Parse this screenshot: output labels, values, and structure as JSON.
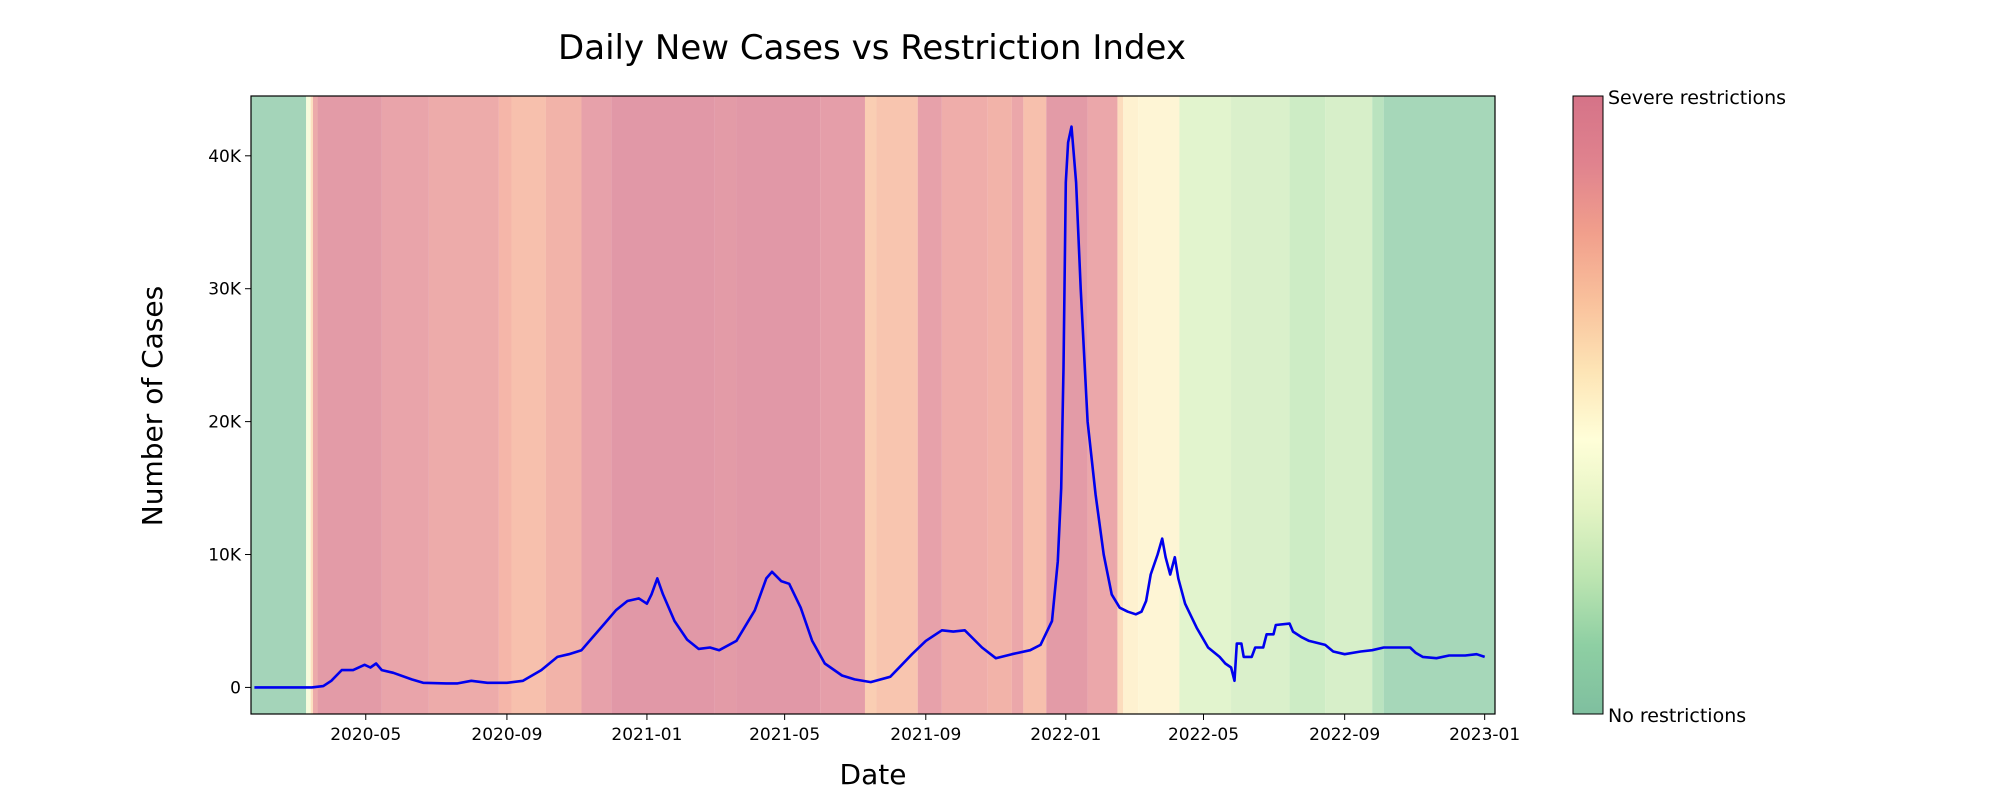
{
  "chart_data": {
    "type": "line",
    "title": "Daily New Cases vs Restriction Index",
    "xlabel": "Date",
    "ylabel": "Number of Cases",
    "xlim": [
      "2020-01-22",
      "2023-01-10"
    ],
    "ylim": [
      -2000,
      44500
    ],
    "grid": false,
    "x_ticks": [
      {
        "date": "2020-05-01",
        "label": "2020-05"
      },
      {
        "date": "2020-09-01",
        "label": "2020-09"
      },
      {
        "date": "2021-01-01",
        "label": "2021-01"
      },
      {
        "date": "2021-05-01",
        "label": "2021-05"
      },
      {
        "date": "2021-09-01",
        "label": "2021-09"
      },
      {
        "date": "2022-01-01",
        "label": "2022-01"
      },
      {
        "date": "2022-05-01",
        "label": "2022-05"
      },
      {
        "date": "2022-09-01",
        "label": "2022-09"
      },
      {
        "date": "2023-01-01",
        "label": "2023-01"
      }
    ],
    "y_ticks": [
      {
        "value": 0,
        "label": "0"
      },
      {
        "value": 10000,
        "label": "10K"
      },
      {
        "value": 20000,
        "label": "20K"
      },
      {
        "value": 30000,
        "label": "30K"
      },
      {
        "value": 40000,
        "label": "40K"
      }
    ],
    "series": [
      {
        "color": "#0000ee",
        "points": [
          [
            "2020-01-25",
            0
          ],
          [
            "2020-02-20",
            0
          ],
          [
            "2020-03-15",
            0
          ],
          [
            "2020-03-25",
            100
          ],
          [
            "2020-04-01",
            500
          ],
          [
            "2020-04-10",
            1300
          ],
          [
            "2020-04-20",
            1300
          ],
          [
            "2020-04-30",
            1700
          ],
          [
            "2020-05-05",
            1500
          ],
          [
            "2020-05-10",
            1800
          ],
          [
            "2020-05-15",
            1300
          ],
          [
            "2020-05-25",
            1100
          ],
          [
            "2020-06-10",
            600
          ],
          [
            "2020-06-20",
            350
          ],
          [
            "2020-07-10",
            300
          ],
          [
            "2020-07-20",
            300
          ],
          [
            "2020-08-01",
            500
          ],
          [
            "2020-08-15",
            350
          ],
          [
            "2020-09-01",
            350
          ],
          [
            "2020-09-15",
            500
          ],
          [
            "2020-10-01",
            1300
          ],
          [
            "2020-10-15",
            2300
          ],
          [
            "2020-10-25",
            2500
          ],
          [
            "2020-11-05",
            2800
          ],
          [
            "2020-11-15",
            3800
          ],
          [
            "2020-11-25",
            4800
          ],
          [
            "2020-12-05",
            5800
          ],
          [
            "2020-12-15",
            6500
          ],
          [
            "2020-12-25",
            6700
          ],
          [
            "2021-01-01",
            6300
          ],
          [
            "2021-01-05",
            7000
          ],
          [
            "2021-01-10",
            8200
          ],
          [
            "2021-01-15",
            7000
          ],
          [
            "2021-01-25",
            5000
          ],
          [
            "2021-02-05",
            3600
          ],
          [
            "2021-02-15",
            2900
          ],
          [
            "2021-02-25",
            3000
          ],
          [
            "2021-03-05",
            2800
          ],
          [
            "2021-03-20",
            3500
          ],
          [
            "2021-04-05",
            5800
          ],
          [
            "2021-04-15",
            8200
          ],
          [
            "2021-04-20",
            8700
          ],
          [
            "2021-04-28",
            8000
          ],
          [
            "2021-05-05",
            7800
          ],
          [
            "2021-05-15",
            6000
          ],
          [
            "2021-05-25",
            3500
          ],
          [
            "2021-06-05",
            1800
          ],
          [
            "2021-06-20",
            900
          ],
          [
            "2021-07-01",
            600
          ],
          [
            "2021-07-15",
            400
          ],
          [
            "2021-08-01",
            800
          ],
          [
            "2021-08-10",
            1600
          ],
          [
            "2021-08-20",
            2500
          ],
          [
            "2021-09-01",
            3500
          ],
          [
            "2021-09-15",
            4300
          ],
          [
            "2021-09-25",
            4200
          ],
          [
            "2021-10-05",
            4300
          ],
          [
            "2021-10-20",
            3000
          ],
          [
            "2021-11-01",
            2200
          ],
          [
            "2021-11-15",
            2500
          ],
          [
            "2021-12-01",
            2800
          ],
          [
            "2021-12-10",
            3200
          ],
          [
            "2021-12-20",
            5000
          ],
          [
            "2021-12-25",
            9500
          ],
          [
            "2021-12-28",
            15000
          ],
          [
            "2021-12-30",
            24000
          ],
          [
            "2022-01-01",
            38000
          ],
          [
            "2022-01-03",
            41000
          ],
          [
            "2022-01-06",
            42200
          ],
          [
            "2022-01-10",
            38000
          ],
          [
            "2022-01-14",
            30000
          ],
          [
            "2022-01-20",
            20000
          ],
          [
            "2022-01-27",
            14500
          ],
          [
            "2022-02-03",
            10000
          ],
          [
            "2022-02-10",
            7000
          ],
          [
            "2022-02-17",
            6000
          ],
          [
            "2022-02-24",
            5700
          ],
          [
            "2022-03-03",
            5500
          ],
          [
            "2022-03-08",
            5700
          ],
          [
            "2022-03-12",
            6500
          ],
          [
            "2022-03-16",
            8500
          ],
          [
            "2022-03-22",
            10000
          ],
          [
            "2022-03-26",
            11200
          ],
          [
            "2022-03-29",
            9800
          ],
          [
            "2022-04-02",
            8500
          ],
          [
            "2022-04-06",
            9800
          ],
          [
            "2022-04-09",
            8200
          ],
          [
            "2022-04-15",
            6300
          ],
          [
            "2022-04-25",
            4500
          ],
          [
            "2022-05-05",
            3000
          ],
          [
            "2022-05-15",
            2300
          ],
          [
            "2022-05-20",
            1800
          ],
          [
            "2022-05-25",
            1500
          ],
          [
            "2022-05-28",
            500
          ],
          [
            "2022-05-30",
            3300
          ],
          [
            "2022-06-03",
            3300
          ],
          [
            "2022-06-05",
            2300
          ],
          [
            "2022-06-12",
            2300
          ],
          [
            "2022-06-15",
            3000
          ],
          [
            "2022-06-22",
            3000
          ],
          [
            "2022-06-25",
            4000
          ],
          [
            "2022-07-01",
            4000
          ],
          [
            "2022-07-03",
            4700
          ],
          [
            "2022-07-15",
            4800
          ],
          [
            "2022-07-18",
            4200
          ],
          [
            "2022-07-25",
            3800
          ],
          [
            "2022-08-01",
            3500
          ],
          [
            "2022-08-15",
            3200
          ],
          [
            "2022-08-22",
            2700
          ],
          [
            "2022-09-01",
            2500
          ],
          [
            "2022-09-15",
            2700
          ],
          [
            "2022-09-25",
            2800
          ],
          [
            "2022-10-05",
            3000
          ],
          [
            "2022-10-15",
            3000
          ],
          [
            "2022-10-28",
            3000
          ],
          [
            "2022-11-02",
            2600
          ],
          [
            "2022-11-08",
            2300
          ],
          [
            "2022-11-20",
            2200
          ],
          [
            "2022-12-01",
            2400
          ],
          [
            "2022-12-15",
            2400
          ],
          [
            "2022-12-25",
            2500
          ],
          [
            "2023-01-01",
            2300
          ]
        ]
      }
    ],
    "background_bands": {
      "quantity": "restriction index",
      "scale_min": 0,
      "scale_max": 1,
      "bands": [
        [
          "2020-01-22",
          "2020-03-10",
          0.05
        ],
        [
          "2020-03-10",
          "2020-03-14",
          0.4
        ],
        [
          "2020-03-14",
          "2020-03-16",
          0.6
        ],
        [
          "2020-03-16",
          "2020-03-20",
          0.85
        ],
        [
          "2020-03-20",
          "2020-05-15",
          0.96
        ],
        [
          "2020-05-15",
          "2020-06-25",
          0.88
        ],
        [
          "2020-06-25",
          "2020-08-25",
          0.84
        ],
        [
          "2020-08-25",
          "2020-09-05",
          0.78
        ],
        [
          "2020-09-05",
          "2020-10-05",
          0.74
        ],
        [
          "2020-10-05",
          "2020-11-05",
          0.8
        ],
        [
          "2020-11-05",
          "2020-12-01",
          0.9
        ],
        [
          "2020-12-01",
          "2021-03-01",
          0.98
        ],
        [
          "2021-03-01",
          "2021-03-20",
          0.96
        ],
        [
          "2021-03-20",
          "2021-06-01",
          0.98
        ],
        [
          "2021-06-01",
          "2021-07-10",
          0.93
        ],
        [
          "2021-07-10",
          "2021-07-20",
          0.68
        ],
        [
          "2021-07-20",
          "2021-08-25",
          0.72
        ],
        [
          "2021-08-25",
          "2021-09-15",
          0.9
        ],
        [
          "2021-09-15",
          "2021-10-25",
          0.83
        ],
        [
          "2021-10-25",
          "2021-11-15",
          0.8
        ],
        [
          "2021-11-15",
          "2021-11-25",
          0.86
        ],
        [
          "2021-11-25",
          "2021-12-15",
          0.74
        ],
        [
          "2021-12-15",
          "2022-01-20",
          0.96
        ],
        [
          "2022-01-20",
          "2022-02-15",
          0.86
        ],
        [
          "2022-02-15",
          "2022-02-20",
          0.62
        ],
        [
          "2022-02-20",
          "2022-03-05",
          0.52
        ],
        [
          "2022-03-05",
          "2022-04-10",
          0.5
        ],
        [
          "2022-04-10",
          "2022-05-25",
          0.3
        ],
        [
          "2022-05-25",
          "2022-07-15",
          0.27
        ],
        [
          "2022-07-15",
          "2022-08-15",
          0.22
        ],
        [
          "2022-08-15",
          "2022-09-25",
          0.26
        ],
        [
          "2022-09-25",
          "2022-10-05",
          0.16
        ],
        [
          "2022-10-05",
          "2023-01-10",
          0.07
        ]
      ]
    },
    "colorbar": {
      "top_label": "Severe restrictions",
      "bottom_label": "No restrictions",
      "colors": [
        "#7fbf9f",
        "#8ecfa3",
        "#bde5b1",
        "#e4f4c4",
        "#fffed8",
        "#fde4b5",
        "#f9c19c",
        "#f19f8c",
        "#e0838e",
        "#d57388"
      ]
    }
  }
}
